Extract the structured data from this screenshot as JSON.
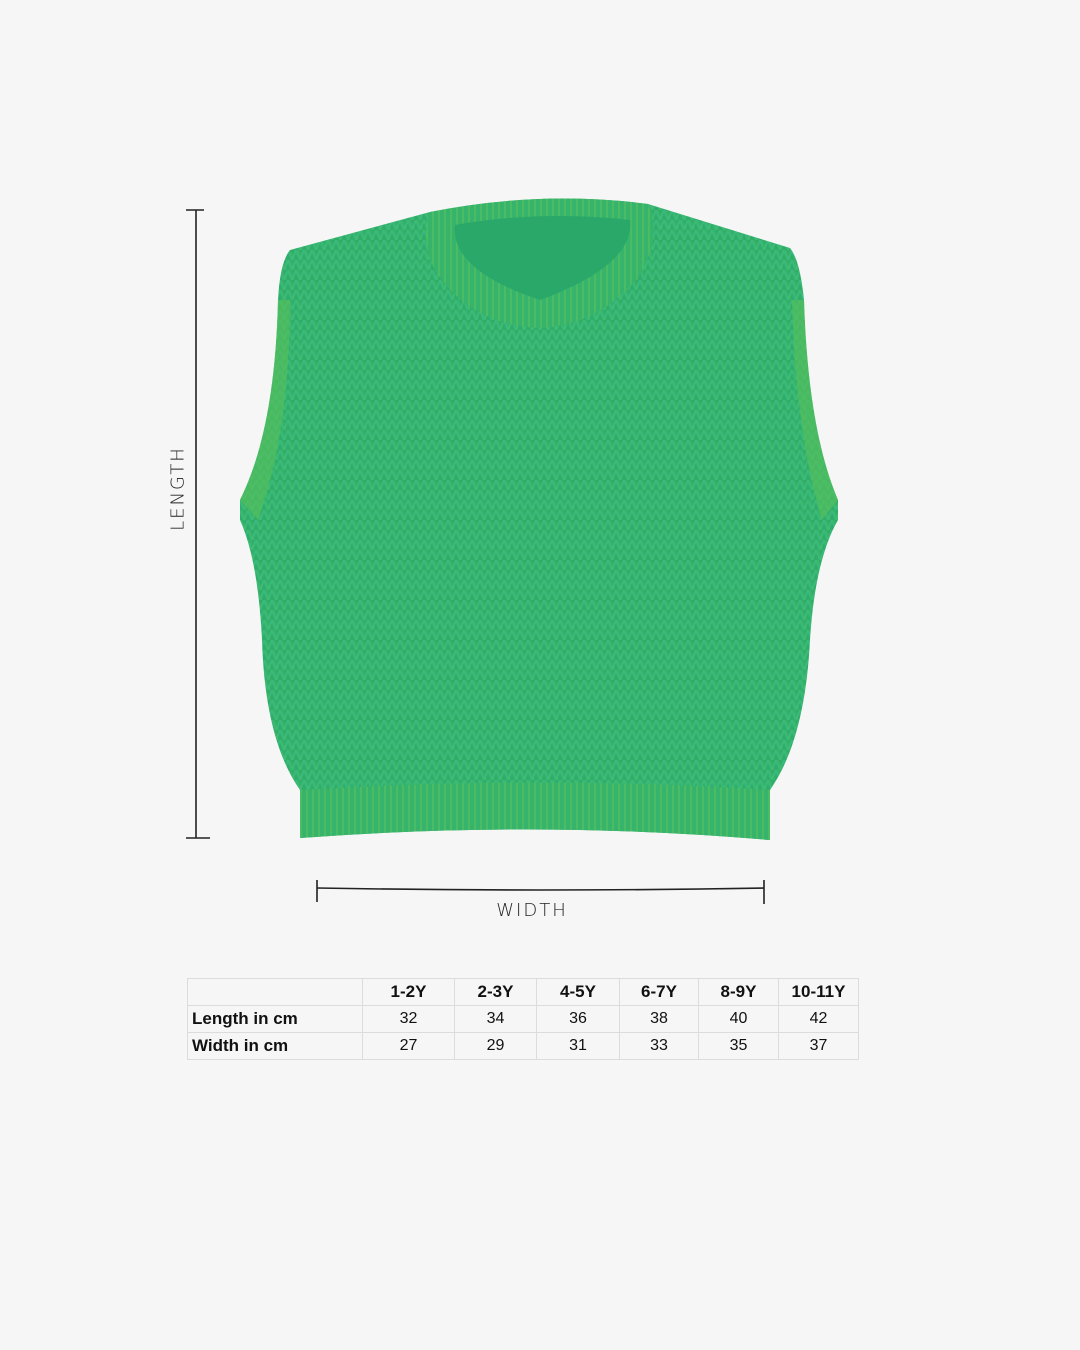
{
  "image": {
    "subject": "green knit sweater vest",
    "colors": {
      "knit": "#2fae6a",
      "rib": "#3bb86f",
      "background": "#f6f6f6"
    }
  },
  "annotations": {
    "length": "LENGTH",
    "width": "WIDTH"
  },
  "size_table": {
    "columns": [
      "",
      "1-2Y",
      "2-3Y",
      "4-5Y",
      "6-7Y",
      "8-9Y",
      "10-11Y"
    ],
    "rows": [
      {
        "label": "Length in cm",
        "values": [
          "32",
          "34",
          "36",
          "38",
          "40",
          "42"
        ]
      },
      {
        "label": "Width in cm",
        "values": [
          "27",
          "29",
          "31",
          "33",
          "35",
          "37"
        ]
      }
    ]
  }
}
